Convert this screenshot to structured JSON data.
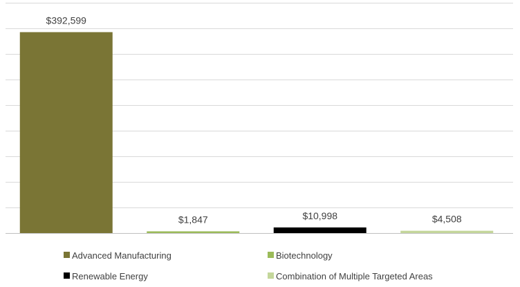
{
  "chart_data": {
    "type": "bar",
    "title": "",
    "xlabel": "",
    "ylabel": "",
    "ylim": [
      0,
      450000
    ],
    "grid": true,
    "legend_position": "bottom",
    "categories": [
      "Advanced Manufacturing",
      "Biotechnology",
      "Renewable Energy",
      "Combination of Multiple Targeted Areas"
    ],
    "values": [
      392599,
      1847,
      10998,
      4508
    ],
    "data_labels": [
      "$392,599",
      "$1,847",
      "$10,998",
      "$4,508"
    ],
    "colors": [
      "#7a7535",
      "#9bbb59",
      "#000000",
      "#c4d79b"
    ],
    "legend": [
      {
        "label": "Advanced Manufacturing",
        "color": "#7a7535"
      },
      {
        "label": "Biotechnology",
        "color": "#9bbb59"
      },
      {
        "label": "Renewable Energy",
        "color": "#000000"
      },
      {
        "label": "Combination of Multiple Targeted Areas",
        "color": "#c4d79b"
      }
    ]
  }
}
